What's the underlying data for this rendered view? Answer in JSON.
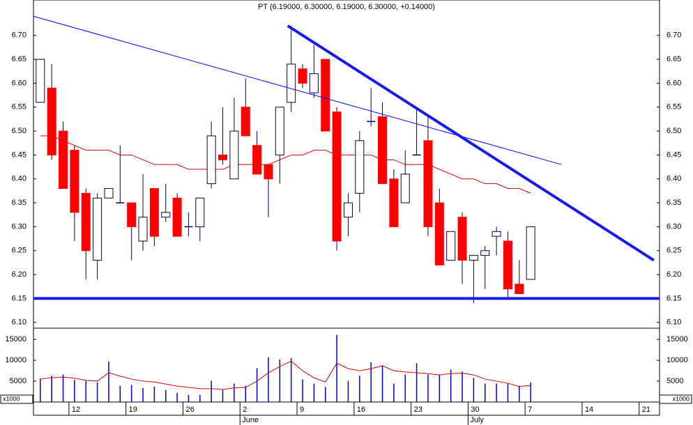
{
  "chart_data": [
    {
      "type": "candlestick",
      "title": "PT (6.19000, 6.30000, 6.19000, 6.30000, +0.14000)",
      "xlim": [
        -0.6,
        54.3
      ],
      "ylim": [
        6.088,
        6.774
      ],
      "yticks": [
        {
          "value": 6.1,
          "label": "6.10"
        },
        6.15,
        {
          "value": 6.2,
          "label": "6.20"
        },
        6.25,
        {
          "value": 6.3,
          "label": "6.30"
        },
        6.35,
        {
          "value": 6.4,
          "label": "6.40"
        },
        6.45,
        {
          "value": 6.5,
          "label": "6.50"
        },
        6.55,
        {
          "value": 6.6,
          "label": "6.60"
        },
        6.65,
        {
          "value": 6.7,
          "label": "6.70"
        }
      ],
      "up_color": "#ffffff",
      "down_color": "#ff0000",
      "wick_color": "#000050",
      "open": [
        6.56,
        6.59,
        6.5,
        6.46,
        6.37,
        6.23,
        6.36,
        6.35,
        6.35,
        6.27,
        6.38,
        6.32,
        6.36,
        6.3,
        6.3,
        6.39,
        6.45,
        6.4,
        6.55,
        6.47,
        6.43,
        6.45,
        6.56,
        6.63,
        6.58,
        6.65,
        6.54,
        6.32,
        6.37,
        6.52,
        6.53,
        6.4,
        6.35,
        6.45,
        6.48,
        6.35,
        6.23,
        6.32,
        6.23,
        6.24,
        6.28,
        6.27,
        6.18,
        6.19
      ],
      "high": [
        6.65,
        6.64,
        6.52,
        6.47,
        6.38,
        6.37,
        6.38,
        6.47,
        6.35,
        6.41,
        6.38,
        6.39,
        6.37,
        6.33,
        6.36,
        6.52,
        6.55,
        6.57,
        6.61,
        6.5,
        6.43,
        6.55,
        6.72,
        6.64,
        6.68,
        6.65,
        6.55,
        6.37,
        6.5,
        6.59,
        6.56,
        6.42,
        6.46,
        6.55,
        6.53,
        6.38,
        6.29,
        6.33,
        6.24,
        6.26,
        6.3,
        6.29,
        6.23,
        6.3
      ],
      "low": [
        6.56,
        6.44,
        6.38,
        6.27,
        6.19,
        6.19,
        6.36,
        6.35,
        6.23,
        6.25,
        6.26,
        6.31,
        6.28,
        6.28,
        6.27,
        6.38,
        6.43,
        6.4,
        6.49,
        6.41,
        6.32,
        6.39,
        6.54,
        6.59,
        6.57,
        6.5,
        6.25,
        6.28,
        6.33,
        6.51,
        6.39,
        6.3,
        6.35,
        6.45,
        6.28,
        6.22,
        6.23,
        6.18,
        6.14,
        6.17,
        6.24,
        6.15,
        6.16,
        6.19
      ],
      "close": [
        6.65,
        6.45,
        6.38,
        6.33,
        6.25,
        6.36,
        6.38,
        6.35,
        6.3,
        6.32,
        6.28,
        6.33,
        6.28,
        6.3,
        6.36,
        6.49,
        6.44,
        6.5,
        6.49,
        6.41,
        6.4,
        6.55,
        6.64,
        6.6,
        6.62,
        6.5,
        6.27,
        6.35,
        6.48,
        6.52,
        6.39,
        6.3,
        6.41,
        6.45,
        6.3,
        6.22,
        6.29,
        6.23,
        6.24,
        6.25,
        6.29,
        6.17,
        6.16,
        6.3
      ],
      "overlay": {
        "color": "#d00000",
        "values": [
          6.49,
          6.49,
          6.48,
          6.47,
          6.46,
          6.46,
          6.46,
          6.45,
          6.45,
          6.44,
          6.43,
          6.43,
          6.43,
          6.42,
          6.42,
          6.42,
          6.42,
          6.43,
          6.43,
          6.43,
          6.43,
          6.44,
          6.45,
          6.45,
          6.46,
          6.46,
          6.45,
          6.45,
          6.45,
          6.45,
          6.44,
          6.44,
          6.43,
          6.43,
          6.43,
          6.42,
          6.41,
          6.4,
          6.4,
          6.39,
          6.39,
          6.38,
          6.38,
          6.37
        ]
      },
      "lines": [
        {
          "x": [
            -0.6,
            45.7
          ],
          "y": [
            6.74,
            6.43
          ],
          "color": "#0000ff",
          "width": 1
        },
        {
          "x": [
            21.7,
            53.8
          ],
          "y": [
            6.72,
            6.23
          ],
          "color": "#1a1aee",
          "width": 4
        },
        {
          "x": [
            -0.6,
            54.3
          ],
          "y": [
            6.15,
            6.15
          ],
          "color": "#1a1aee",
          "width": 4
        }
      ]
    },
    {
      "type": "bar",
      "xlim": [
        -0.6,
        54.3
      ],
      "ylim": [
        0,
        17700
      ],
      "yticks": [
        5000,
        10000,
        15000
      ],
      "unit_label": "x1000",
      "color": "#0000cc",
      "categories": [
        null,
        null,
        null,
        "12",
        null,
        null,
        null,
        null,
        "19",
        null,
        null,
        null,
        null,
        "26",
        null,
        null,
        null,
        null,
        "2",
        null,
        null,
        null,
        null,
        "9",
        null,
        null,
        null,
        null,
        "16",
        null,
        null,
        null,
        null,
        "23",
        null,
        null,
        null,
        null,
        "30",
        null,
        null,
        null,
        null,
        "7",
        null,
        null,
        null,
        null,
        "14",
        null,
        null,
        null,
        null,
        "21",
        null
      ],
      "months": [
        null,
        null,
        null,
        null,
        null,
        null,
        null,
        null,
        null,
        null,
        null,
        null,
        null,
        null,
        null,
        null,
        null,
        null,
        "June",
        null,
        null,
        null,
        null,
        null,
        null,
        null,
        null,
        null,
        null,
        null,
        null,
        null,
        null,
        null,
        null,
        null,
        null,
        null,
        "July",
        null,
        null,
        null,
        null,
        null,
        null,
        null,
        null,
        null,
        null,
        null,
        null,
        null,
        null,
        null,
        null
      ],
      "values": [
        5600,
        6300,
        6600,
        5300,
        5100,
        4700,
        9700,
        3900,
        4100,
        3400,
        3700,
        2900,
        2200,
        1700,
        1700,
        5100,
        2900,
        4400,
        3900,
        8100,
        10700,
        10200,
        10500,
        5400,
        4400,
        3600,
        16100,
        5100,
        6300,
        9500,
        8800,
        4400,
        6600,
        9300,
        6600,
        6600,
        7800,
        7300,
        5800,
        4400,
        4400,
        4400,
        3900,
        4700,
        null,
        null,
        null,
        null,
        null,
        null,
        null,
        null,
        null,
        null,
        null
      ],
      "overlay": {
        "color": "#d00000",
        "values": [
          5500,
          5800,
          6000,
          5700,
          5200,
          5000,
          7000,
          6200,
          5500,
          5000,
          4800,
          4300,
          3800,
          3500,
          3200,
          3200,
          3000,
          3400,
          3500,
          5000,
          7000,
          8500,
          9800,
          7500,
          5800,
          4800,
          9300,
          8000,
          7500,
          8000,
          8700,
          7500,
          7200,
          7000,
          6800,
          6500,
          6800,
          6900,
          6500,
          5500,
          5000,
          4500,
          3700,
          4000,
          null,
          null,
          null,
          null,
          null,
          null,
          null,
          null,
          null,
          null,
          null
        ]
      }
    }
  ]
}
